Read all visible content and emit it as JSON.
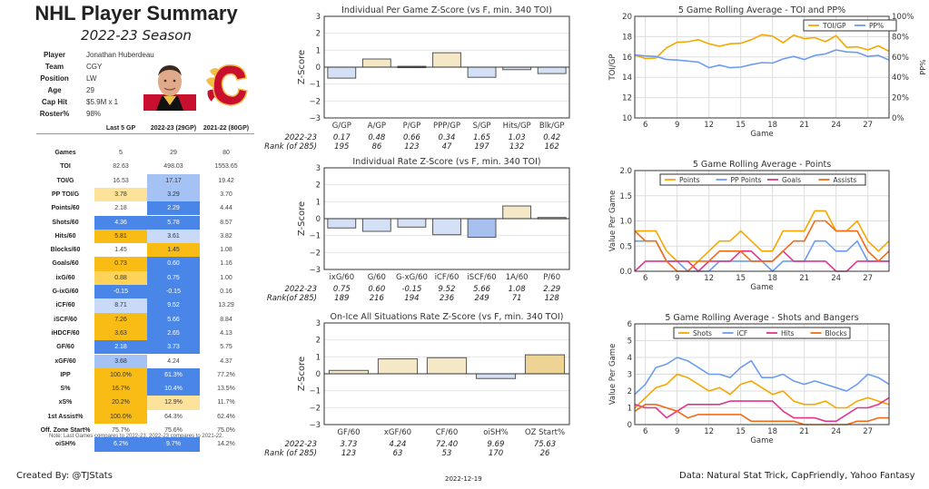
{
  "header": {
    "title": "NHL Player Summary",
    "subtitle": "2022-23 Season"
  },
  "player_info": [
    {
      "label": "Player",
      "value": "Jonathan Huberdeau"
    },
    {
      "label": "Team",
      "value": "CGY"
    },
    {
      "label": "Position",
      "value": "LW"
    },
    {
      "label": "Age",
      "value": "29"
    },
    {
      "label": "Cap Hit",
      "value": "$5.9M x 1"
    },
    {
      "label": "Roster%",
      "value": "98%"
    }
  ],
  "colors": {
    "dark_blue": "#4a86e8",
    "mid_blue": "#a4c2f4",
    "light_blue": "#c9daf8",
    "dark_gold": "#f9bc14",
    "mid_gold": "#fdd35a",
    "light_gold": "#fde29a",
    "points": "#f5a700",
    "pp": "#6b9cf0",
    "goals": "#e0368a",
    "assists": "#f26b15"
  },
  "table": {
    "headers": [
      "Last 5 GP",
      "2022-23 (29GP)",
      "2021-22 (80GP)"
    ],
    "rows": [
      {
        "label": "Games",
        "values": [
          "5",
          "29",
          "80"
        ],
        "shade": [
          "",
          "",
          ""
        ]
      },
      {
        "label": "TOI",
        "values": [
          "82.63",
          "498.03",
          "1553.65"
        ],
        "shade": [
          "",
          "",
          ""
        ]
      },
      {
        "label": "TOI/G",
        "values": [
          "16.53",
          "17.17",
          "19.42"
        ],
        "shade": [
          "",
          "mb",
          ""
        ]
      },
      {
        "label": "PP TOI/G",
        "values": [
          "3.78",
          "3.29",
          "3.70"
        ],
        "shade": [
          "lg",
          "mb",
          ""
        ]
      },
      {
        "label": "Points/60",
        "values": [
          "2.18",
          "2.29",
          "4.44"
        ],
        "shade": [
          "",
          "db",
          ""
        ]
      },
      {
        "label": "Shots/60",
        "values": [
          "4.36",
          "5.78",
          "8.57"
        ],
        "shade": [
          "db",
          "db",
          ""
        ]
      },
      {
        "label": "Hits/60",
        "values": [
          "5.81",
          "3.61",
          "3.82"
        ],
        "shade": [
          "dg",
          "lb",
          ""
        ]
      },
      {
        "label": "Blocks/60",
        "values": [
          "1.45",
          "1.45",
          "1.08"
        ],
        "shade": [
          "",
          "dg",
          ""
        ]
      },
      {
        "label": "Goals/60",
        "values": [
          "0.73",
          "0.60",
          "1.16"
        ],
        "shade": [
          "dg",
          "db",
          ""
        ]
      },
      {
        "label": "ixG/60",
        "values": [
          "0.88",
          "0.75",
          "1.00"
        ],
        "shade": [
          "mg",
          "db",
          ""
        ]
      },
      {
        "label": "G-ixG/60",
        "values": [
          "-0.15",
          "-0.15",
          "0.16"
        ],
        "shade": [
          "db",
          "db",
          ""
        ]
      },
      {
        "label": "iCF/60",
        "values": [
          "8.71",
          "9.52",
          "13.29"
        ],
        "shade": [
          "lb",
          "db",
          ""
        ]
      },
      {
        "label": "iSCF/60",
        "values": [
          "7.26",
          "5.66",
          "8.84"
        ],
        "shade": [
          "dg",
          "db",
          ""
        ]
      },
      {
        "label": "iHDCF/60",
        "values": [
          "3.63",
          "2.65",
          "4.13"
        ],
        "shade": [
          "dg",
          "db",
          ""
        ]
      },
      {
        "label": "GF/60",
        "values": [
          "2.18",
          "3.73",
          "5.75"
        ],
        "shade": [
          "db",
          "db",
          ""
        ]
      },
      {
        "label": "xGF/60",
        "values": [
          "3.68",
          "4.24",
          "4.37"
        ],
        "shade": [
          "mb",
          "",
          ""
        ]
      },
      {
        "label": "IPP",
        "values": [
          "100.0%",
          "61.3%",
          "77.2%"
        ],
        "shade": [
          "dg",
          "db",
          ""
        ]
      },
      {
        "label": "S%",
        "values": [
          "16.7%",
          "10.4%",
          "13.5%"
        ],
        "shade": [
          "dg",
          "db",
          ""
        ]
      },
      {
        "label": "xS%",
        "values": [
          "20.2%",
          "12.9%",
          "11.7%"
        ],
        "shade": [
          "dg",
          "lg",
          ""
        ]
      },
      {
        "label": "1st Assist%",
        "values": [
          "100.0%",
          "64.3%",
          "62.4%"
        ],
        "shade": [
          "dg",
          "",
          ""
        ]
      },
      {
        "label": "Off. Zone Start%",
        "values": [
          "75.7%",
          "75.6%",
          "75.0%"
        ],
        "shade": [
          "",
          "",
          ""
        ]
      },
      {
        "label": "oiSH%",
        "values": [
          "6.2%",
          "9.7%",
          "14.2%"
        ],
        "shade": [
          "db",
          "db",
          ""
        ]
      }
    ]
  },
  "note": "Note: Last Games compares to 2022-23. 2022-23 compares to 2021-22.",
  "footer": {
    "created_by": "Created By: @TJStats",
    "date": "2022-12-19",
    "source": "Data: Natural Stat Trick, CapFriendly, Yahoo Fantasy"
  },
  "chart_data": [
    {
      "type": "bar",
      "title": "Individual Per Game Z-Score (vs F, min. 340 TOI)",
      "ylabel": "Z-Score",
      "ylim": [
        -3,
        3
      ],
      "yticks": [
        "3",
        "2",
        "1",
        "0",
        "−1",
        "−2",
        "−3"
      ],
      "categories": [
        "G/GP",
        "A/GP",
        "P/GP",
        "PPP/GP",
        "S/GP",
        "Hits/GP",
        "Blk/GP"
      ],
      "values": [
        -0.65,
        0.48,
        0.05,
        0.85,
        -0.6,
        -0.15,
        -0.38
      ],
      "row_labels": [
        "2022-23",
        "Rank (of 285)"
      ],
      "stat_values": [
        "0.17",
        "0.48",
        "0.66",
        "0.34",
        "1.65",
        "1.03",
        "0.42"
      ],
      "ranks": [
        "195",
        "86",
        "123",
        "47",
        "197",
        "132",
        "162"
      ]
    },
    {
      "type": "bar",
      "title": "Individual Rate Z-Score (vs F, min. 340 TOI)",
      "ylabel": "Z-Score",
      "ylim": [
        -3,
        3
      ],
      "yticks": [
        "3",
        "2",
        "1",
        "0",
        "−1",
        "−2",
        "−3"
      ],
      "categories": [
        "ixG/60",
        "G/60",
        "G-xG/60",
        "iCF/60",
        "iSCF/60",
        "1A/60",
        "P/60"
      ],
      "values": [
        -0.55,
        -0.75,
        -0.5,
        -0.95,
        -1.1,
        0.75,
        0.07
      ],
      "row_labels": [
        "2022-23",
        "Rank(of 285)"
      ],
      "stat_values": [
        "0.75",
        "0.60",
        "-0.15",
        "9.52",
        "5.66",
        "1.08",
        "2.29"
      ],
      "ranks": [
        "189",
        "216",
        "194",
        "236",
        "249",
        "71",
        "128"
      ]
    },
    {
      "type": "bar",
      "title": "On-Ice All Situations Rate Z-Score (vs F, min. 340 TOI)",
      "ylabel": "Z-Score",
      "ylim": [
        -3,
        3
      ],
      "yticks": [
        "3",
        "2",
        "1",
        "0",
        "−1",
        "−2",
        "−3"
      ],
      "categories": [
        "GF/60",
        "xGF/60",
        "CF/60",
        "oiSH%",
        "OZ Start%"
      ],
      "values": [
        0.2,
        0.88,
        0.95,
        -0.28,
        1.12
      ],
      "row_labels": [
        "2022-23",
        "Rank (of 285)"
      ],
      "stat_values": [
        "3.73",
        "4.24",
        "72.40",
        "9.69",
        "75.63"
      ],
      "ranks": [
        "123",
        "63",
        "53",
        "170",
        "26"
      ]
    },
    {
      "type": "line",
      "title": "5 Game Rolling Average - TOI and PP%",
      "xlabel": "Game",
      "ylabel": "TOI/GP",
      "ylabel_right": "PP%",
      "xlim": [
        5,
        29
      ],
      "ylim": [
        10,
        20
      ],
      "ylim_right": [
        0,
        100
      ],
      "xticks": [
        "6",
        "9",
        "12",
        "15",
        "18",
        "21",
        "24",
        "27"
      ],
      "yticks": [
        "20",
        "18",
        "16",
        "14",
        "12",
        "10"
      ],
      "yticks_right": [
        "100%",
        "80%",
        "60%",
        "40%",
        "20%",
        "0%"
      ],
      "legend": "top-right",
      "x": [
        5,
        6,
        7,
        8,
        9,
        10,
        11,
        12,
        13,
        14,
        15,
        16,
        17,
        18,
        19,
        20,
        21,
        22,
        23,
        24,
        25,
        26,
        27,
        28,
        29
      ],
      "series": [
        {
          "name": "TOI/GP",
          "axis": "left",
          "values": [
            16.2,
            15.85,
            15.9,
            16.9,
            17.45,
            17.5,
            17.7,
            17.3,
            17.05,
            17.3,
            17.35,
            17.7,
            18.2,
            18.05,
            17.4,
            18.15,
            17.8,
            17.9,
            17.5,
            18.1,
            16.95,
            17.0,
            16.7,
            17.1,
            16.55
          ]
        },
        {
          "name": "PP%",
          "axis": "right",
          "values": [
            62,
            61,
            60.5,
            57.5,
            57,
            56,
            55,
            49.5,
            52,
            49.5,
            50,
            52.5,
            54.5,
            54,
            58,
            60.5,
            57.5,
            61.5,
            63,
            67,
            65,
            64.5,
            60.5,
            61.5,
            57
          ]
        }
      ]
    },
    {
      "type": "line",
      "title": "5 Game Rolling Average - Points",
      "xlabel": "Game",
      "ylabel": "Value Per Game",
      "xlim": [
        5,
        29
      ],
      "ylim": [
        0,
        2
      ],
      "xticks": [
        "6",
        "9",
        "12",
        "15",
        "18",
        "21",
        "24",
        "27"
      ],
      "yticks": [
        "2.0",
        "1.5",
        "1.0",
        "0.5",
        "0.0"
      ],
      "legend": "top-center",
      "x": [
        5,
        6,
        7,
        8,
        9,
        10,
        11,
        12,
        13,
        14,
        15,
        16,
        17,
        18,
        19,
        20,
        21,
        22,
        23,
        24,
        25,
        26,
        27,
        28,
        29
      ],
      "series": [
        {
          "name": "Points",
          "values": [
            0.8,
            0.8,
            0.8,
            0.4,
            0.2,
            0.2,
            0.2,
            0.4,
            0.6,
            0.6,
            0.8,
            0.6,
            0.4,
            0.4,
            0.8,
            0.8,
            0.8,
            1.2,
            1.2,
            0.8,
            0.8,
            1.0,
            0.6,
            0.4,
            0.6
          ]
        },
        {
          "name": "PP Points",
          "values": [
            0.6,
            0.6,
            0.6,
            0.2,
            0.2,
            0.0,
            0.0,
            0.0,
            0.2,
            0.2,
            0.2,
            0.2,
            0.2,
            0.0,
            0.2,
            0.2,
            0.2,
            0.6,
            0.6,
            0.4,
            0.4,
            0.6,
            0.2,
            0.2,
            0.2
          ]
        },
        {
          "name": "Goals",
          "values": [
            0.0,
            0.2,
            0.2,
            0.2,
            0.2,
            0.2,
            0.0,
            0.2,
            0.2,
            0.2,
            0.4,
            0.4,
            0.2,
            0.2,
            0.4,
            0.2,
            0.2,
            0.2,
            0.2,
            0.0,
            0.0,
            0.2,
            0.2,
            0.2,
            0.2
          ]
        },
        {
          "name": "Assists",
          "values": [
            0.8,
            0.6,
            0.6,
            0.2,
            0.0,
            0.0,
            0.2,
            0.2,
            0.4,
            0.4,
            0.4,
            0.2,
            0.2,
            0.2,
            0.4,
            0.6,
            0.6,
            1.0,
            1.0,
            0.8,
            0.8,
            0.8,
            0.4,
            0.2,
            0.4
          ]
        }
      ]
    },
    {
      "type": "line",
      "title": "5 Game Rolling Average - Shots and Bangers",
      "xlabel": "Game",
      "ylabel": "Value Per Game",
      "xlim": [
        5,
        29
      ],
      "ylim": [
        0,
        6
      ],
      "xticks": [
        "6",
        "9",
        "12",
        "15",
        "18",
        "21",
        "24",
        "27"
      ],
      "yticks": [
        "6",
        "5",
        "4",
        "3",
        "2",
        "1",
        "0"
      ],
      "legend": "top-center",
      "x": [
        5,
        6,
        7,
        8,
        9,
        10,
        11,
        12,
        13,
        14,
        15,
        16,
        17,
        18,
        19,
        20,
        21,
        22,
        23,
        24,
        25,
        26,
        27,
        28,
        29
      ],
      "series": [
        {
          "name": "Shots",
          "values": [
            1.0,
            1.6,
            2.2,
            2.4,
            3.0,
            2.8,
            2.4,
            2.0,
            2.2,
            1.8,
            2.4,
            2.6,
            2.2,
            1.8,
            2.0,
            1.4,
            1.2,
            1.2,
            1.4,
            1.0,
            1.0,
            1.4,
            1.6,
            1.4,
            1.2
          ]
        },
        {
          "name": "iCF",
          "values": [
            1.8,
            2.4,
            3.4,
            3.6,
            4.0,
            3.8,
            3.4,
            3.0,
            3.0,
            2.8,
            3.4,
            3.8,
            2.8,
            2.8,
            3.0,
            2.6,
            2.4,
            2.6,
            2.4,
            2.2,
            2.0,
            2.4,
            3.0,
            2.8,
            2.4
          ]
        },
        {
          "name": "Hits",
          "values": [
            1.2,
            1.0,
            1.0,
            0.4,
            0.8,
            1.2,
            1.2,
            1.2,
            1.2,
            1.4,
            1.4,
            1.4,
            1.4,
            1.4,
            0.8,
            0.4,
            0.4,
            0.4,
            0.2,
            0.2,
            0.6,
            1.0,
            1.0,
            1.2,
            1.6
          ]
        },
        {
          "name": "Blocks",
          "values": [
            0.8,
            1.2,
            1.2,
            1.0,
            0.8,
            0.4,
            0.6,
            0.6,
            0.6,
            0.6,
            0.6,
            0.2,
            0.2,
            0.2,
            0.2,
            0.2,
            0.0,
            0.0,
            0.0,
            0.0,
            0.0,
            0.2,
            0.2,
            0.4,
            0.4
          ]
        }
      ]
    }
  ]
}
